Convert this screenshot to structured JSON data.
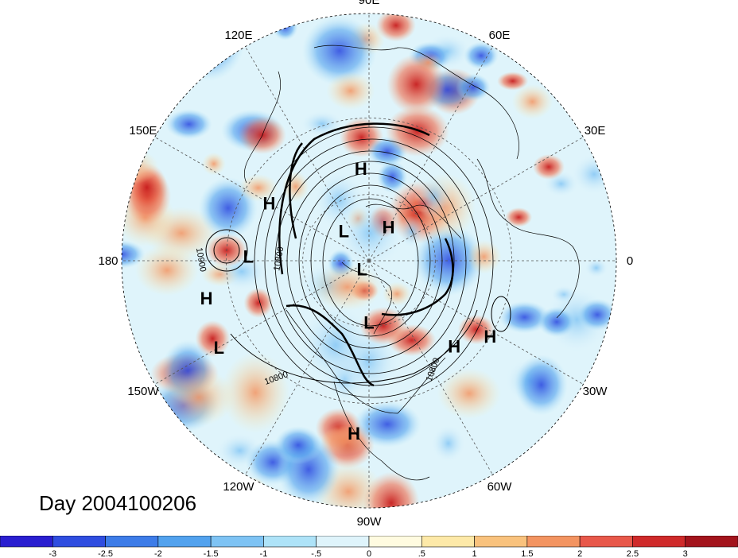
{
  "map": {
    "projection": "north-polar-stereographic",
    "longitude_labels": [
      {
        "text": "90E",
        "lon": 90
      },
      {
        "text": "60E",
        "lon": 60
      },
      {
        "text": "120E",
        "lon": 120
      },
      {
        "text": "30E",
        "lon": 30
      },
      {
        "text": "150E",
        "lon": 150
      },
      {
        "text": "180",
        "lon": 180
      },
      {
        "text": "0",
        "lon": 0
      },
      {
        "text": "150W",
        "lon": -150
      },
      {
        "text": "30W",
        "lon": -30
      },
      {
        "text": "120W",
        "lon": -120
      },
      {
        "text": "60W",
        "lon": -60
      },
      {
        "text": "90W",
        "lon": -90
      }
    ],
    "pressure_centers": [
      {
        "type": "H",
        "lat": 49,
        "lon": 95
      },
      {
        "type": "H",
        "lat": 40,
        "lon": 150
      },
      {
        "type": "L",
        "lat": 72,
        "lon": 130
      },
      {
        "type": "H",
        "lat": 72,
        "lon": 60
      },
      {
        "type": "L",
        "lat": 38,
        "lon": 178
      },
      {
        "type": "H",
        "lat": 22,
        "lon": -167
      },
      {
        "type": "L",
        "lat": 20,
        "lon": -150
      },
      {
        "type": "L",
        "lat": 85,
        "lon": -130
      },
      {
        "type": "L",
        "lat": 62,
        "lon": -90
      },
      {
        "type": "H",
        "lat": 38,
        "lon": -45
      },
      {
        "type": "H",
        "lat": 30,
        "lon": -32
      },
      {
        "type": "H",
        "lat": 20,
        "lon": -95
      }
    ],
    "contour_labels": [
      "10800",
      "10900",
      "10800",
      "10800"
    ],
    "highlight_colors": {
      "warm": "#d7301f",
      "cold": "#2166ac"
    }
  },
  "day_label": "Day 2004100206",
  "colorbar": {
    "colors": [
      "#2a1ed0",
      "#2f4de0",
      "#3d7ce8",
      "#52a2ee",
      "#7ec3f4",
      "#aee3f8",
      "#dff4fb",
      "#fffbe0",
      "#fde9a8",
      "#f9c27d",
      "#f39461",
      "#e8584a",
      "#cf2a2a",
      "#a3141c"
    ],
    "ticks": [
      "-3",
      "-2.5",
      "-2",
      "-1.5",
      "-1",
      "-.5",
      "0",
      ".5",
      "1",
      "1.5",
      "2",
      "2.5",
      "3"
    ]
  }
}
